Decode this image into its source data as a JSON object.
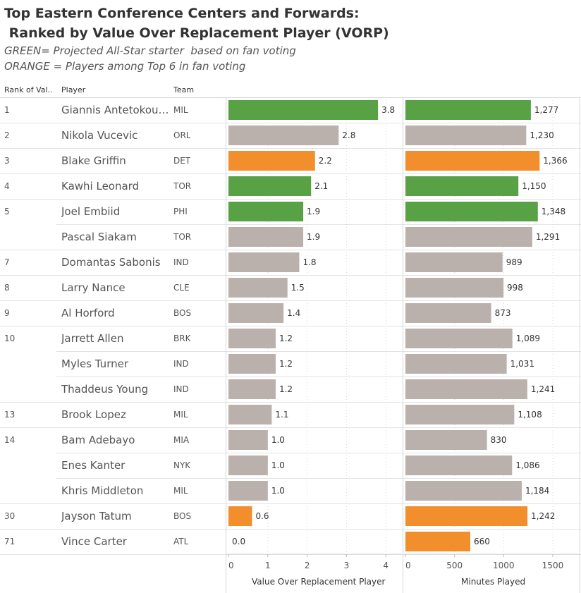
{
  "title_line1": "Top Eastern Conference Centers and Forwards:",
  "title_line2": " Ranked by Value Over Replacement Player (VORP)",
  "subtitle_line1": "GREEN= Projected All-Star starter  based on fan voting",
  "subtitle_line2": "ORANGE = Players among Top 6 in fan voting",
  "headers": {
    "rank": "Rank of Val..",
    "player": "Player",
    "team": "Team"
  },
  "colors": {
    "green": "#58a145",
    "orange": "#f28e2b",
    "gray": "#bab0ac"
  },
  "rows": [
    {
      "rank": "1",
      "player": "Giannis Antetokoun..",
      "team": "MIL"
    },
    {
      "rank": "2",
      "player": "Nikola Vucevic",
      "team": "ORL"
    },
    {
      "rank": "3",
      "player": "Blake Griffin",
      "team": "DET"
    },
    {
      "rank": "4",
      "player": "Kawhi Leonard",
      "team": "TOR"
    },
    {
      "rank": "5",
      "player": "Joel Embiid",
      "team": "PHI"
    },
    {
      "rank": "",
      "player": "Pascal Siakam",
      "team": "TOR"
    },
    {
      "rank": "7",
      "player": "Domantas Sabonis",
      "team": "IND"
    },
    {
      "rank": "8",
      "player": "Larry Nance",
      "team": "CLE"
    },
    {
      "rank": "9",
      "player": "Al Horford",
      "team": "BOS"
    },
    {
      "rank": "10",
      "player": "Jarrett Allen",
      "team": "BRK"
    },
    {
      "rank": "",
      "player": "Myles Turner",
      "team": "IND"
    },
    {
      "rank": "",
      "player": "Thaddeus Young",
      "team": "IND"
    },
    {
      "rank": "13",
      "player": "Brook Lopez",
      "team": "MIL"
    },
    {
      "rank": "14",
      "player": "Bam Adebayo",
      "team": "MIA"
    },
    {
      "rank": "",
      "player": "Enes Kanter",
      "team": "NYK"
    },
    {
      "rank": "",
      "player": "Khris Middleton",
      "team": "MIL"
    },
    {
      "rank": "30",
      "player": "Jayson Tatum",
      "team": "BOS"
    },
    {
      "rank": "71",
      "player": "Vince Carter",
      "team": "ATL"
    }
  ],
  "chart_data": [
    {
      "type": "bar",
      "orientation": "horizontal",
      "xlabel": "Value Over Replacement Player",
      "xlim": [
        0,
        4.3
      ],
      "ticks": [
        0,
        1,
        2,
        3,
        4
      ],
      "tick_labels": [
        "0",
        "1",
        "2",
        "3",
        "4"
      ],
      "values": [
        3.8,
        2.8,
        2.2,
        2.1,
        1.9,
        1.9,
        1.8,
        1.5,
        1.4,
        1.2,
        1.2,
        1.2,
        1.1,
        1.0,
        1.0,
        1.0,
        0.6,
        0.0
      ],
      "labels": [
        "3.8",
        "2.8",
        "2.2",
        "2.1",
        "1.9",
        "1.9",
        "1.8",
        "1.5",
        "1.4",
        "1.2",
        "1.2",
        "1.2",
        "1.1",
        "1.0",
        "1.0",
        "1.0",
        "0.6",
        "0.0"
      ],
      "color_keys": [
        "green",
        "gray",
        "orange",
        "green",
        "green",
        "gray",
        "gray",
        "gray",
        "gray",
        "gray",
        "gray",
        "gray",
        "gray",
        "gray",
        "gray",
        "gray",
        "orange",
        "orange"
      ]
    },
    {
      "type": "bar",
      "orientation": "horizontal",
      "xlabel": "Minutes Played",
      "xlim": [
        0,
        1730
      ],
      "ticks": [
        0,
        500,
        1000,
        1500
      ],
      "tick_labels": [
        "0",
        "500",
        "1000",
        "1500"
      ],
      "values": [
        1277,
        1230,
        1366,
        1150,
        1348,
        1291,
        989,
        998,
        873,
        1089,
        1031,
        1241,
        1108,
        830,
        1086,
        1184,
        1242,
        660
      ],
      "labels": [
        "1,277",
        "1,230",
        "1,366",
        "1,150",
        "1,348",
        "1,291",
        "989",
        "998",
        "873",
        "1,089",
        "1,031",
        "1,241",
        "1,108",
        "830",
        "1,086",
        "1,184",
        "1,242",
        "660"
      ],
      "color_keys": [
        "green",
        "gray",
        "orange",
        "green",
        "green",
        "gray",
        "gray",
        "gray",
        "gray",
        "gray",
        "gray",
        "gray",
        "gray",
        "gray",
        "gray",
        "gray",
        "orange",
        "orange"
      ]
    }
  ]
}
